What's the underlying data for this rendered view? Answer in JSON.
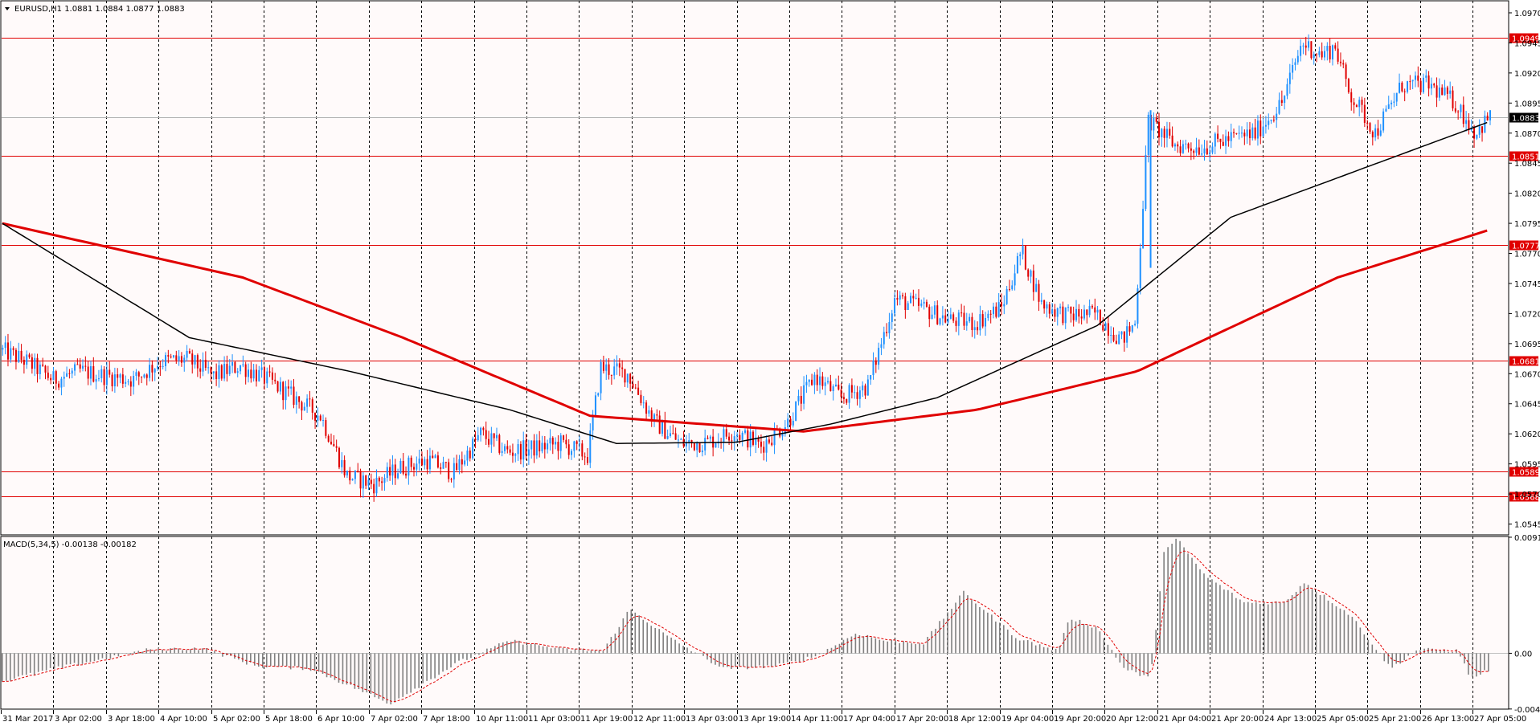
{
  "main_header": {
    "menu_icon": "triangle-down-icon",
    "text": "EURUSD,H1  1.0881 1.0884 1.0877 1.0883"
  },
  "macd_header": {
    "text": "MACD(5,34,5) -0.00138 -0.00182"
  },
  "price_axis": {
    "ticks": [
      "1.0970",
      "1.0945",
      "1.0920",
      "1.0895",
      "1.0870",
      "1.0845",
      "1.0820",
      "1.0795",
      "1.0770",
      "1.0745",
      "1.0720",
      "1.0695",
      "1.0670",
      "1.0645",
      "1.0620",
      "1.0595",
      "1.0570",
      "1.0545"
    ],
    "range": [
      1.0536,
      1.098
    ]
  },
  "macd_axis": {
    "ticks": [
      "0.00914",
      "0.00",
      "-0.00439"
    ],
    "range": [
      -0.0044,
      0.0092
    ]
  },
  "time_axis": {
    "labels": [
      "31 Mar 2017",
      "3 Apr 02:00",
      "3 Apr 18:00",
      "4 Apr 10:00",
      "5 Apr 02:00",
      "5 Apr 18:00",
      "6 Apr 10:00",
      "7 Apr 02:00",
      "7 Apr 18:00",
      "10 Apr 11:00",
      "11 Apr 03:00",
      "11 Apr 19:00",
      "12 Apr 11:00",
      "13 Apr 03:00",
      "13 Apr 19:00",
      "14 Apr 11:00",
      "17 Apr 04:00",
      "17 Apr 20:00",
      "18 Apr 12:00",
      "19 Apr 04:00",
      "19 Apr 20:00",
      "20 Apr 12:00",
      "21 Apr 04:00",
      "21 Apr 20:00",
      "24 Apr 13:00",
      "25 Apr 05:00",
      "25 Apr 21:00",
      "26 Apr 13:00",
      "27 Apr 05:00"
    ]
  },
  "levels": [
    {
      "price": 1.0949,
      "label": "1.0949",
      "color": "#e00000"
    },
    {
      "price": 1.0851,
      "label": "1.0851",
      "color": "#e00000"
    },
    {
      "price": 1.0777,
      "label": "1.0777",
      "color": "#e00000"
    },
    {
      "price": 1.0681,
      "label": "1.0681",
      "color": "#e00000"
    },
    {
      "price": 1.0589,
      "label": "1.0589",
      "color": "#e00000"
    },
    {
      "price": 1.0568,
      "label": "1.0568",
      "color": "#e00000"
    }
  ],
  "current_price": {
    "price": 1.0883,
    "label": "1.0883",
    "color": "#000000"
  },
  "colors": {
    "bull": "#1e90ff",
    "bear": "#e00000",
    "ma_slow": "#e00000",
    "ma_fast": "#000000",
    "macd_hist": "#808080",
    "macd_signal": "#e00000",
    "grid": "#000000",
    "background": "#fffafa"
  },
  "chart_data": {
    "type": "candlestick",
    "symbol": "EURUSD",
    "timeframe": "H1",
    "anchors": [
      [
        0,
        1.069
      ],
      [
        20,
        1.068
      ],
      [
        40,
        1.0665
      ],
      [
        60,
        1.0672
      ],
      [
        80,
        1.0668
      ],
      [
        100,
        1.0665
      ],
      [
        120,
        1.068
      ],
      [
        140,
        1.0682
      ],
      [
        160,
        1.0668
      ],
      [
        180,
        1.0677
      ],
      [
        200,
        1.0665
      ],
      [
        220,
        1.065
      ],
      [
        240,
        1.0635
      ],
      [
        260,
        1.0585
      ],
      [
        280,
        1.0578
      ],
      [
        300,
        1.0592
      ],
      [
        320,
        1.0598
      ],
      [
        340,
        1.0588
      ],
      [
        360,
        1.062
      ],
      [
        380,
        1.0605
      ],
      [
        400,
        1.0608
      ],
      [
        420,
        1.0612
      ],
      [
        440,
        1.0602
      ],
      [
        450,
        1.0675
      ],
      [
        470,
        1.067
      ],
      [
        490,
        1.063
      ],
      [
        510,
        1.0612
      ],
      [
        530,
        1.0613
      ],
      [
        550,
        1.0622
      ],
      [
        570,
        1.061
      ],
      [
        590,
        1.063
      ],
      [
        610,
        1.0668
      ],
      [
        630,
        1.065
      ],
      [
        650,
        1.066
      ],
      [
        670,
        1.0732
      ],
      [
        690,
        1.0725
      ],
      [
        710,
        1.0715
      ],
      [
        730,
        1.0712
      ],
      [
        750,
        1.0725
      ],
      [
        765,
        1.0772
      ],
      [
        780,
        1.0728
      ],
      [
        800,
        1.0718
      ],
      [
        820,
        1.072
      ],
      [
        840,
        1.0698
      ],
      [
        850,
        1.0712
      ],
      [
        860,
        1.088
      ],
      [
        880,
        1.086
      ],
      [
        900,
        1.0858
      ],
      [
        920,
        1.0865
      ],
      [
        940,
        1.087
      ],
      [
        960,
        1.0895
      ],
      [
        975,
        1.0945
      ],
      [
        990,
        1.0935
      ],
      [
        1000,
        1.0942
      ],
      [
        1010,
        1.0905
      ],
      [
        1030,
        1.087
      ],
      [
        1050,
        1.091
      ],
      [
        1070,
        1.091
      ],
      [
        1090,
        1.0895
      ],
      [
        1105,
        1.087
      ],
      [
        1115,
        1.0883
      ]
    ],
    "ma_fast": [
      [
        1.0795,
        0
      ],
      [
        1.07,
        140
      ],
      [
        1.0672,
        260
      ],
      [
        1.064,
        380
      ],
      [
        1.0612,
        460
      ],
      [
        1.0613,
        550
      ],
      [
        1.0628,
        620
      ],
      [
        1.065,
        700
      ],
      [
        1.071,
        820
      ],
      [
        1.08,
        920
      ],
      [
        1.088,
        1115
      ]
    ],
    "ma_slow": [
      [
        1.0795,
        0
      ],
      [
        1.075,
        180
      ],
      [
        1.07,
        300
      ],
      [
        1.0635,
        440
      ],
      [
        1.0622,
        600
      ],
      [
        1.064,
        730
      ],
      [
        1.0672,
        850
      ],
      [
        1.075,
        1000
      ],
      [
        1.079,
        1115
      ]
    ],
    "macd_anchors": [
      [
        0,
        -0.0022
      ],
      [
        40,
        -0.0012
      ],
      [
        110,
        0.0003
      ],
      [
        150,
        0.0004
      ],
      [
        190,
        -0.001
      ],
      [
        230,
        -0.0012
      ],
      [
        270,
        -0.003
      ],
      [
        290,
        -0.004
      ],
      [
        340,
        -0.0008
      ],
      [
        380,
        0.001
      ],
      [
        420,
        0.0003
      ],
      [
        450,
        0.0002
      ],
      [
        470,
        0.0035
      ],
      [
        500,
        0.0012
      ],
      [
        540,
        -0.0012
      ],
      [
        580,
        -0.001
      ],
      [
        610,
        -0.0002
      ],
      [
        640,
        0.0016
      ],
      [
        660,
        0.001
      ],
      [
        690,
        0.0008
      ],
      [
        720,
        0.0048
      ],
      [
        760,
        0.0012
      ],
      [
        790,
        0.0002
      ],
      [
        800,
        0.0028
      ],
      [
        820,
        0.002
      ],
      [
        840,
        -0.0012
      ],
      [
        860,
        -0.002
      ],
      [
        870,
        0.008
      ],
      [
        880,
        0.009
      ],
      [
        900,
        0.0062
      ],
      [
        930,
        0.004
      ],
      [
        960,
        0.004
      ],
      [
        975,
        0.0056
      ],
      [
        1010,
        0.003
      ],
      [
        1040,
        -0.0012
      ],
      [
        1060,
        0.0003
      ],
      [
        1090,
        0.0002
      ],
      [
        1100,
        -0.002
      ],
      [
        1115,
        -0.0012
      ]
    ]
  }
}
